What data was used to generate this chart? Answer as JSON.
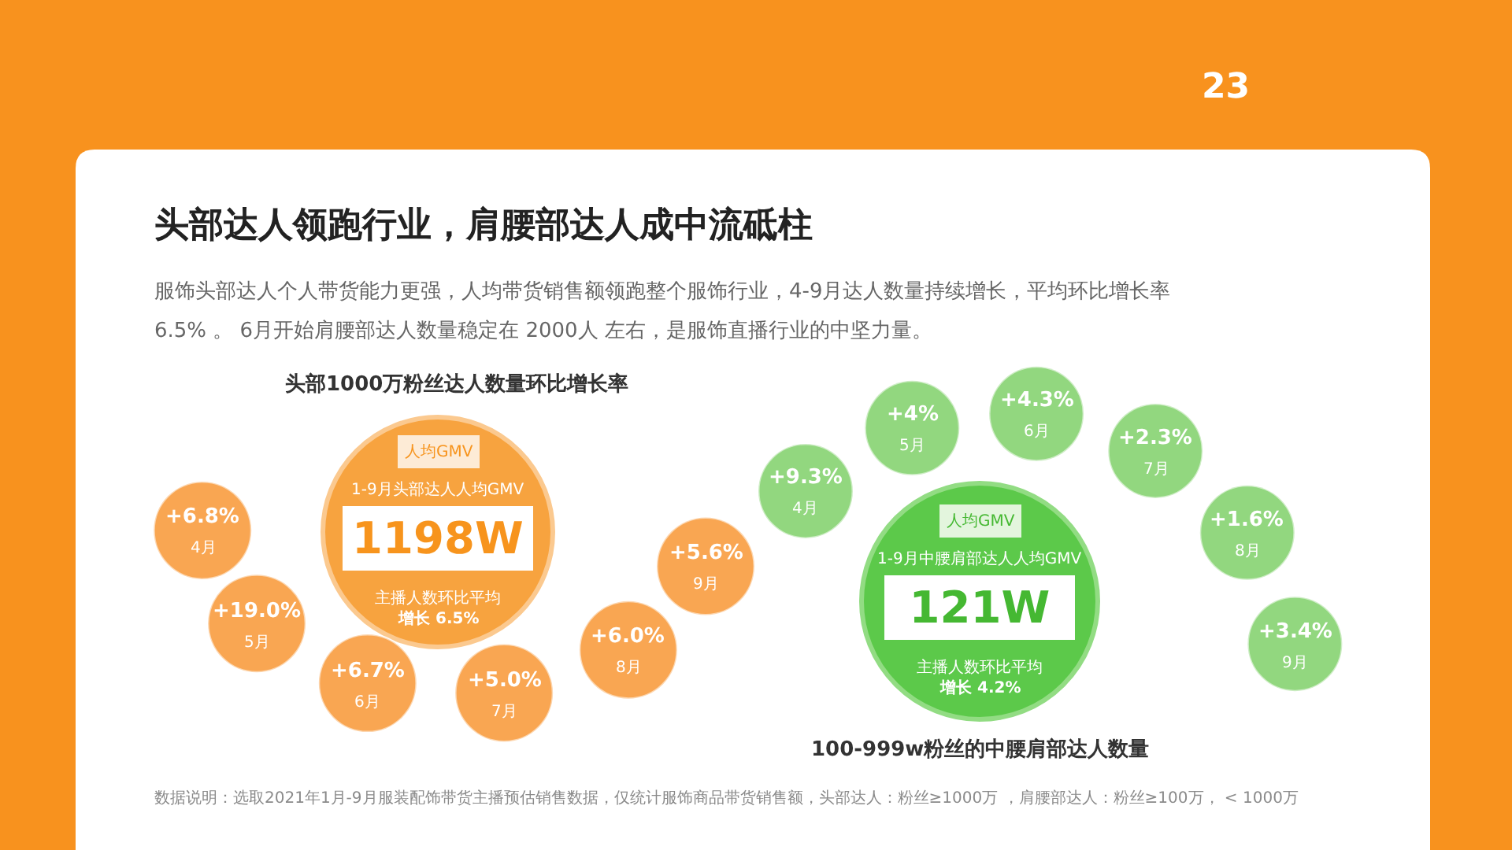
{
  "chart_data": [
    {
      "type": "other",
      "title": "头部达人领跑行业，肩腰部达人成中流砥柱",
      "subtitle": "服饰头部达人个人带货能力更强，人均带货销售额领跑整个服饰行业，4-9月达人数量持续增长，平均环比增长率\n6.5% 。 6月开始肩腰部达人数量稳定在 2000人 左右，是服饰直播行业的中坚力量。",
      "annotations": [
        "23",
        "数据说明：选取2021年1月-9月服装配饰带货主播预估销售数据，仅统计服饰商品带货销售额，头部达人：粉丝≥1000万 ，肩腰部达人：粉丝≥100万， < 1000万"
      ]
    },
    {
      "type": "other",
      "title": "头部1000万粉丝达人数量环比增长率",
      "categories": [
        "4月",
        "5月",
        "6月",
        "7月",
        "8月",
        "9月"
      ],
      "values": [
        6.8,
        19.0,
        6.7,
        5.0,
        6.0,
        5.6
      ],
      "value_labels": [
        "+6.8%",
        "+19.0%",
        "+6.7%",
        "+5.0%",
        "+6.0%",
        "+5.6%"
      ],
      "color": "#f9a652",
      "annotations": [
        "人均GMV",
        "1-9月头部达人人均GMV",
        "1198W",
        "主播人数环比平均",
        "增长 6.5%"
      ]
    },
    {
      "type": "other",
      "title": "100-999w粉丝的中腰肩部达人数量",
      "categories": [
        "4月",
        "5月",
        "6月",
        "7月",
        "8月",
        "9月"
      ],
      "values": [
        9.3,
        4,
        4.3,
        2.3,
        1.6,
        3.4
      ],
      "value_labels": [
        "+9.3%",
        "+4%",
        "+4.3%",
        "+2.3%",
        "+1.6%",
        "+3.4%"
      ],
      "color": "#92d77f",
      "annotations": [
        "人均GMV",
        "1-9月中腰肩部达人人均GMV",
        "121W",
        "主播人数环比平均",
        "增长 4.2%"
      ]
    }
  ]
}
